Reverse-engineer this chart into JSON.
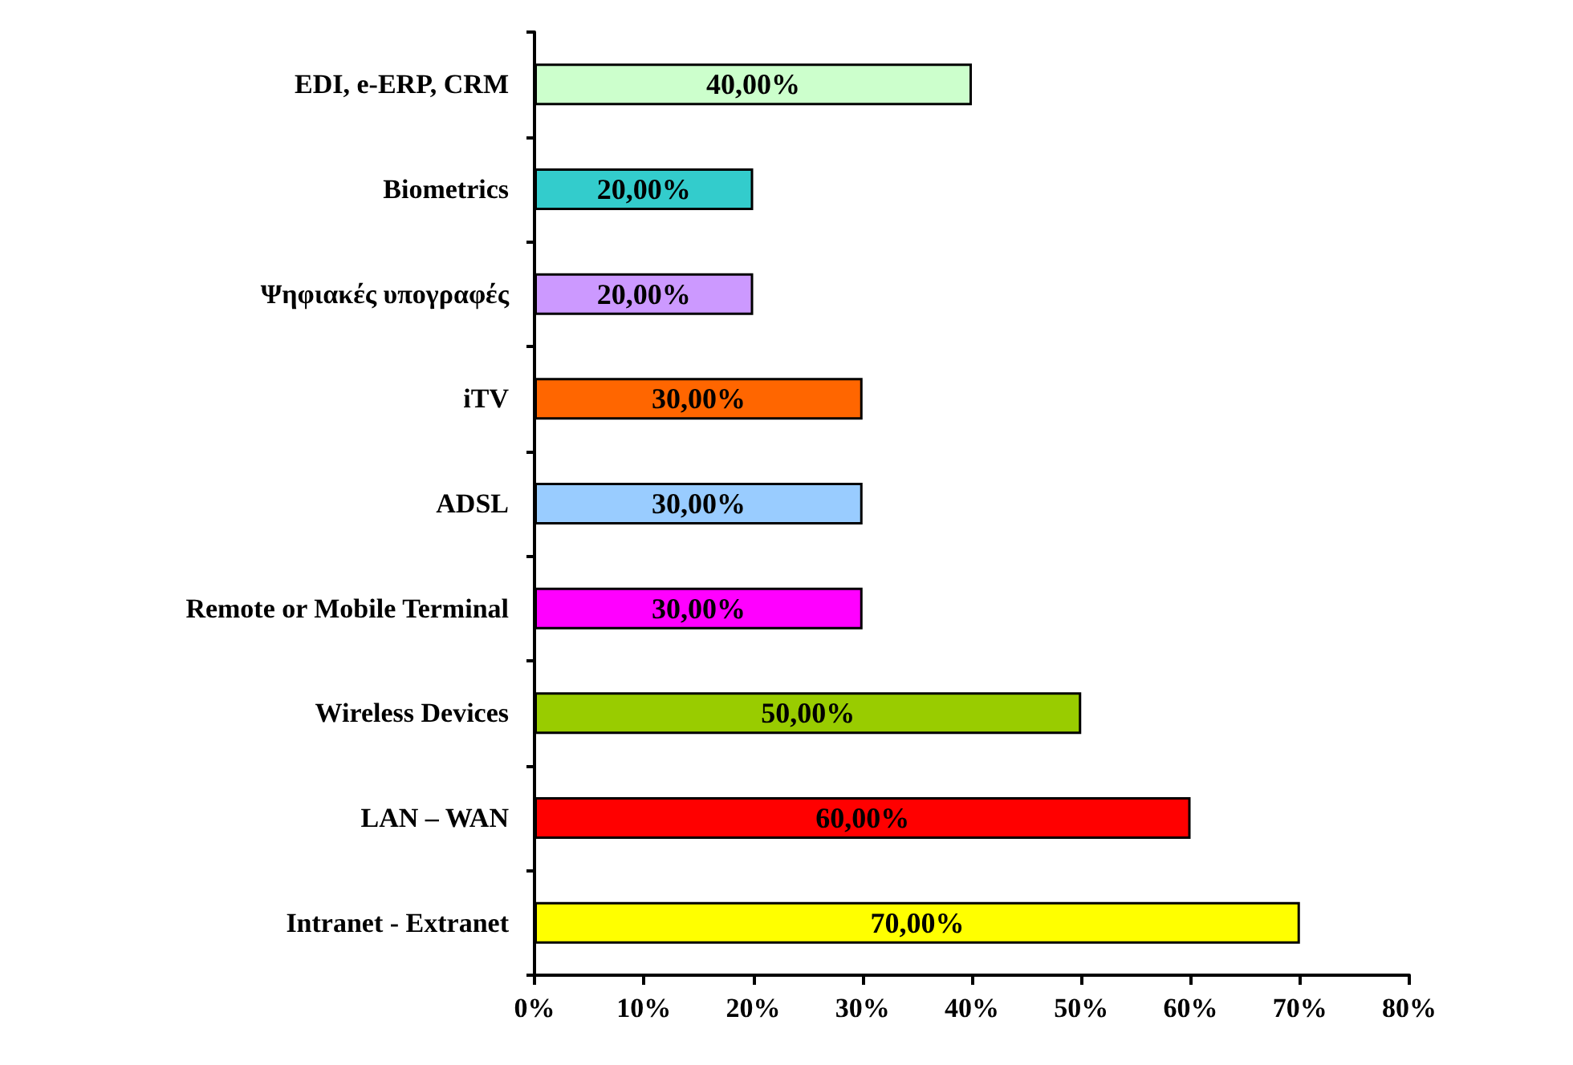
{
  "chart_data": {
    "type": "bar",
    "orientation": "horizontal",
    "categories": [
      "EDI, e-ERP, CRM",
      "Biometrics",
      "Ψηφιακές υπογραφές",
      "iTV",
      "ADSL",
      "Remote or Mobile Terminal",
      "Wireless Devices",
      "LAN – WAN",
      "Intranet - Extranet"
    ],
    "values": [
      40,
      20,
      20,
      30,
      30,
      30,
      50,
      60,
      70
    ],
    "colors": [
      "#ccffcc",
      "#33cccc",
      "#cc99ff",
      "#ff6600",
      "#99ccff",
      "#ff00ff",
      "#99cc00",
      "#ff0000",
      "#ffff00"
    ],
    "value_labels": [
      "40,00%",
      "20,00%",
      "20,00%",
      "30,00%",
      "30,00%",
      "30,00%",
      "50,00%",
      "60,00%",
      "70,00%"
    ],
    "xlim": [
      0,
      80
    ],
    "xticks": [
      {
        "value": 0,
        "label": "0%"
      },
      {
        "value": 10,
        "label": "10%"
      },
      {
        "value": 20,
        "label": "20%"
      },
      {
        "value": 30,
        "label": "30%"
      },
      {
        "value": 40,
        "label": "40%"
      },
      {
        "value": 50,
        "label": "50%"
      },
      {
        "value": 60,
        "label": "60%"
      },
      {
        "value": 70,
        "label": "70%"
      },
      {
        "value": 80,
        "label": "80%"
      }
    ],
    "grid": false
  }
}
